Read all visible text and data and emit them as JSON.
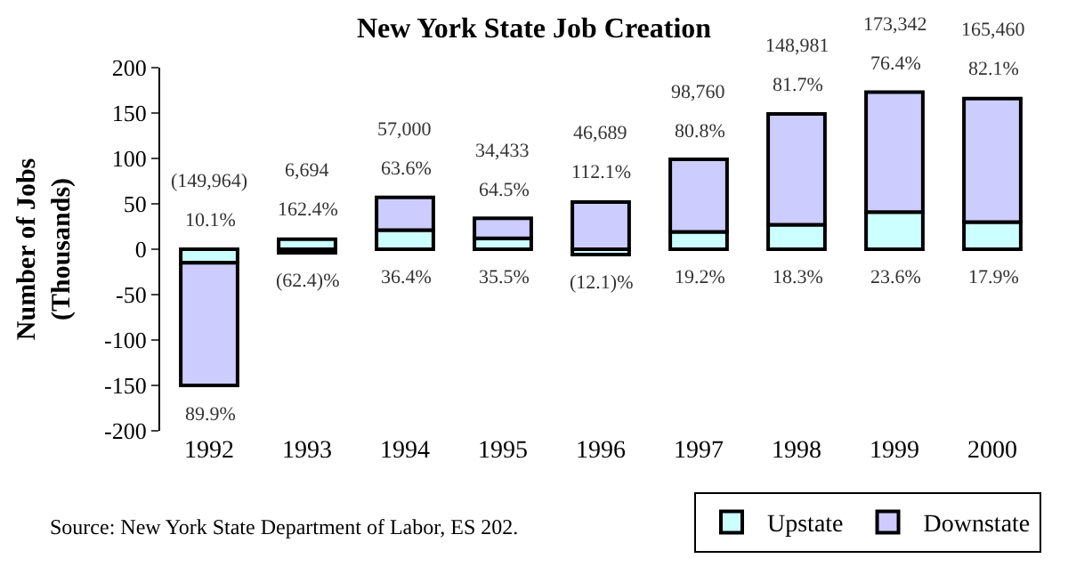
{
  "chart_data": {
    "type": "bar",
    "title": "New York State Job Creation",
    "ylabel": "Number of Jobs\n(Thousands)",
    "categories": [
      "1992",
      "1993",
      "1994",
      "1995",
      "1996",
      "1997",
      "1998",
      "1999",
      "2000"
    ],
    "stacked": true,
    "series": [
      {
        "name": "Upstate",
        "color": "#ccffff",
        "values": [
          -15,
          11,
          21,
          12,
          -6,
          19,
          27,
          41,
          30
        ]
      },
      {
        "name": "Downstate",
        "color": "#ccccff",
        "values": [
          -135,
          -4,
          36,
          22,
          52,
          80,
          122,
          132,
          136
        ]
      }
    ],
    "ylim": [
      -200,
      200
    ],
    "yticks": [
      -200,
      -150,
      -100,
      -50,
      0,
      50,
      100,
      150,
      200
    ],
    "legend": "bottom right",
    "annotations": [
      "(149,964)",
      "10.1%",
      "89.9%",
      "6,694",
      "162.4%",
      "(62.4)%",
      "57,000",
      "36.4%",
      "63.6%",
      "34,433",
      "35.5%",
      "64.5%",
      "46,689",
      "(12.1)%",
      "112.1%",
      "98,760",
      "19.2%",
      "80.8%",
      "148,981",
      "18.3%",
      "81.7%",
      "173,342",
      "23.6%",
      "76.4%",
      "165,460",
      "17.9%",
      "82.1%",
      "Source: New York State Department of Labor, ES 202."
    ]
  }
}
